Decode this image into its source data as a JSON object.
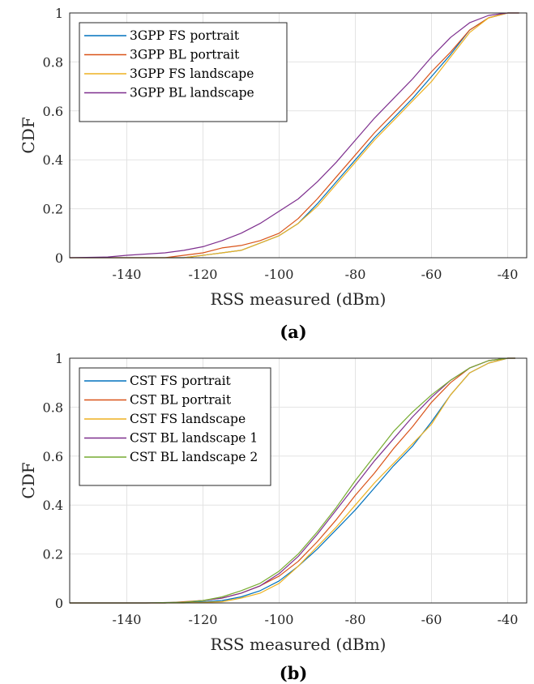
{
  "chart_data": [
    {
      "type": "line",
      "caption": "(a)",
      "xlabel": "RSS measured (dBm)",
      "ylabel": "CDF",
      "xlim": [
        -155,
        -35
      ],
      "ylim": [
        0,
        1
      ],
      "xticks": [
        -140,
        -120,
        -100,
        -80,
        -60,
        -40
      ],
      "yticks": [
        0,
        0.2,
        0.4,
        0.6,
        0.8,
        1
      ],
      "grid": true,
      "legend": "top-left",
      "series": [
        {
          "name": "3GPP FS portrait",
          "color": "#0072BD",
          "x": [
            -155,
            -125,
            -120,
            -115,
            -110,
            -105,
            -100,
            -95,
            -90,
            -85,
            -80,
            -75,
            -70,
            -65,
            -60,
            -55,
            -50,
            -45,
            -40,
            -37
          ],
          "y": [
            0,
            0.0,
            0.01,
            0.02,
            0.03,
            0.06,
            0.09,
            0.14,
            0.22,
            0.31,
            0.4,
            0.49,
            0.57,
            0.65,
            0.74,
            0.83,
            0.93,
            0.98,
            1.0,
            1.0
          ]
        },
        {
          "name": "3GPP BL portrait",
          "color": "#D95319",
          "x": [
            -155,
            -130,
            -125,
            -120,
            -115,
            -110,
            -105,
            -100,
            -95,
            -90,
            -85,
            -80,
            -75,
            -70,
            -65,
            -60,
            -55,
            -50,
            -45,
            -40,
            -37
          ],
          "y": [
            0,
            0.0,
            0.01,
            0.02,
            0.04,
            0.05,
            0.07,
            0.1,
            0.16,
            0.24,
            0.33,
            0.42,
            0.51,
            0.59,
            0.67,
            0.76,
            0.84,
            0.93,
            0.98,
            1.0,
            1.0
          ]
        },
        {
          "name": "3GPP FS landscape",
          "color": "#EDB120",
          "x": [
            -155,
            -125,
            -120,
            -115,
            -110,
            -105,
            -100,
            -95,
            -90,
            -85,
            -80,
            -75,
            -70,
            -65,
            -60,
            -55,
            -50,
            -45,
            -40,
            -37
          ],
          "y": [
            0,
            0.0,
            0.01,
            0.02,
            0.03,
            0.06,
            0.09,
            0.14,
            0.21,
            0.3,
            0.39,
            0.48,
            0.56,
            0.64,
            0.72,
            0.82,
            0.92,
            0.98,
            1.0,
            1.0
          ]
        },
        {
          "name": "3GPP BL landscape",
          "color": "#7E2F8E",
          "x": [
            -155,
            -145,
            -140,
            -135,
            -130,
            -125,
            -120,
            -115,
            -110,
            -105,
            -100,
            -95,
            -90,
            -85,
            -80,
            -75,
            -70,
            -65,
            -60,
            -55,
            -50,
            -45,
            -40,
            -37
          ],
          "y": [
            0,
            0.003,
            0.01,
            0.015,
            0.02,
            0.03,
            0.045,
            0.07,
            0.1,
            0.14,
            0.19,
            0.24,
            0.31,
            0.39,
            0.48,
            0.57,
            0.65,
            0.73,
            0.82,
            0.9,
            0.96,
            0.99,
            1.0,
            1.0
          ]
        }
      ]
    },
    {
      "type": "line",
      "caption": "(b)",
      "xlabel": "RSS measured (dBm)",
      "ylabel": "CDF",
      "xlim": [
        -155,
        -35
      ],
      "ylim": [
        0,
        1
      ],
      "xticks": [
        -140,
        -120,
        -100,
        -80,
        -60,
        -40
      ],
      "yticks": [
        0,
        0.2,
        0.4,
        0.6,
        0.8,
        1
      ],
      "grid": true,
      "legend": "top-left",
      "series": [
        {
          "name": "CST FS portrait",
          "color": "#0072BD",
          "x": [
            -155,
            -130,
            -120,
            -115,
            -110,
            -105,
            -100,
            -95,
            -90,
            -85,
            -80,
            -75,
            -70,
            -65,
            -60,
            -55,
            -50,
            -45,
            -40,
            -38
          ],
          "y": [
            0,
            0.0,
            0.005,
            0.01,
            0.025,
            0.05,
            0.09,
            0.15,
            0.22,
            0.3,
            0.38,
            0.47,
            0.56,
            0.64,
            0.74,
            0.85,
            0.94,
            0.98,
            1.0,
            1.0
          ]
        },
        {
          "name": "CST BL portrait",
          "color": "#D95319",
          "x": [
            -155,
            -130,
            -120,
            -115,
            -110,
            -105,
            -100,
            -95,
            -90,
            -85,
            -80,
            -75,
            -70,
            -65,
            -60,
            -55,
            -50,
            -45,
            -40,
            -38
          ],
          "y": [
            0,
            0.0,
            0.01,
            0.02,
            0.04,
            0.07,
            0.11,
            0.17,
            0.25,
            0.34,
            0.44,
            0.53,
            0.63,
            0.72,
            0.82,
            0.9,
            0.96,
            0.99,
            1.0,
            1.0
          ]
        },
        {
          "name": "CST FS landscape",
          "color": "#EDB120",
          "x": [
            -155,
            -125,
            -115,
            -110,
            -105,
            -100,
            -95,
            -90,
            -85,
            -80,
            -75,
            -70,
            -65,
            -60,
            -55,
            -50,
            -45,
            -40,
            -38
          ],
          "y": [
            0,
            0.0,
            0.005,
            0.02,
            0.04,
            0.08,
            0.15,
            0.23,
            0.31,
            0.4,
            0.49,
            0.57,
            0.65,
            0.73,
            0.85,
            0.94,
            0.98,
            1.0,
            1.0
          ]
        },
        {
          "name": "CST BL landscape 1",
          "color": "#7E2F8E",
          "x": [
            -155,
            -135,
            -125,
            -120,
            -115,
            -110,
            -105,
            -100,
            -95,
            -90,
            -85,
            -80,
            -75,
            -70,
            -65,
            -60,
            -55,
            -50,
            -45,
            -40,
            -38
          ],
          "y": [
            0,
            0.0,
            0.003,
            0.01,
            0.02,
            0.04,
            0.07,
            0.12,
            0.19,
            0.28,
            0.38,
            0.48,
            0.58,
            0.67,
            0.76,
            0.84,
            0.91,
            0.96,
            0.99,
            1.0,
            1.0
          ]
        },
        {
          "name": "CST BL landscape 2",
          "color": "#77AC30",
          "x": [
            -155,
            -135,
            -125,
            -120,
            -115,
            -110,
            -105,
            -100,
            -95,
            -90,
            -85,
            -80,
            -75,
            -70,
            -65,
            -60,
            -55,
            -50,
            -45,
            -40,
            -38
          ],
          "y": [
            0,
            0.0,
            0.003,
            0.01,
            0.025,
            0.05,
            0.08,
            0.13,
            0.2,
            0.29,
            0.39,
            0.5,
            0.6,
            0.7,
            0.78,
            0.85,
            0.91,
            0.96,
            0.99,
            1.0,
            1.0
          ]
        }
      ]
    }
  ]
}
